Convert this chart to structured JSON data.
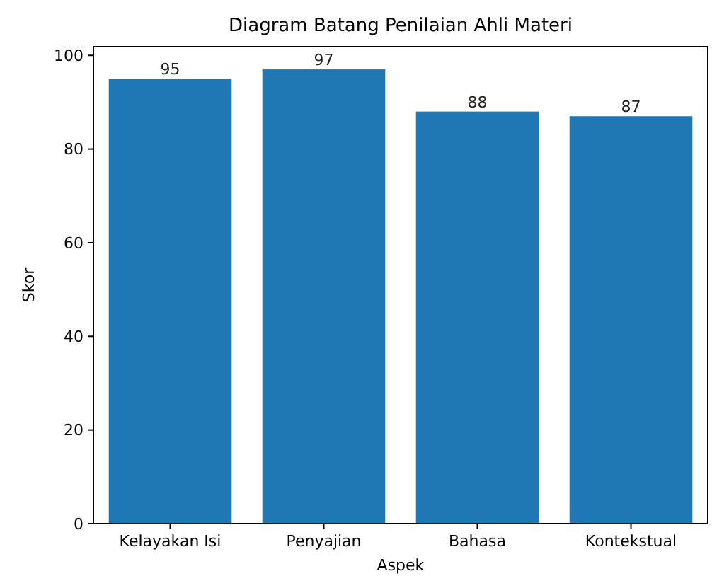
{
  "chart_data": {
    "type": "bar",
    "title": "Diagram Batang Penilaian Ahli Materi",
    "xlabel": "Aspek",
    "ylabel": "Skor",
    "categories": [
      "Kelayakan Isi",
      "Penyajian",
      "Bahasa",
      "Kontekstual"
    ],
    "values": [
      95,
      97,
      88,
      87
    ],
    "color": "#1f77b4",
    "ylim": [
      0,
      101.85
    ],
    "yticks": [
      0,
      20,
      40,
      60,
      80,
      100
    ],
    "grid": false,
    "data_labels": true
  }
}
